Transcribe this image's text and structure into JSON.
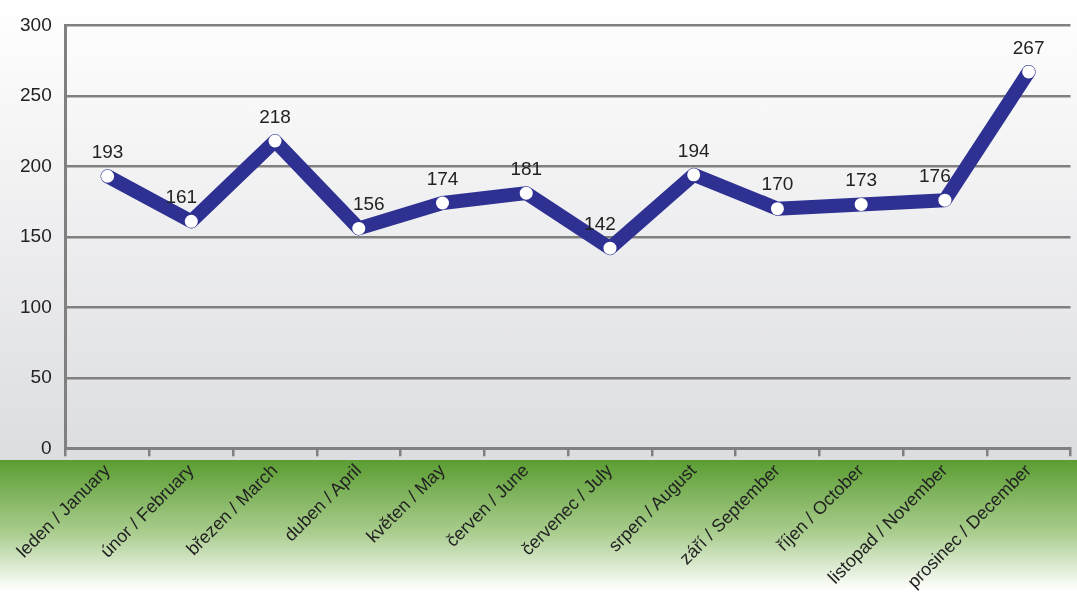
{
  "chart_data": {
    "type": "line",
    "categories": [
      "leden / January",
      "únor / February",
      "březen / March",
      "duben / April",
      "květen / May",
      "červen / June",
      "červenec / July",
      "srpen / August",
      "září / September",
      "říjen / October",
      "listopad / November",
      "prosinec / December"
    ],
    "series": [
      {
        "color": "#2e3192",
        "values": [
          193,
          161,
          218,
          156,
          174,
          181,
          142,
          194,
          170,
          173,
          176,
          267
        ]
      }
    ],
    "ylim": [
      0,
      300
    ],
    "yticks": [
      0,
      50,
      100,
      150,
      200,
      250,
      300
    ],
    "grid": "y",
    "data_labels": true,
    "marker": "circle",
    "line_style": "solid"
  }
}
